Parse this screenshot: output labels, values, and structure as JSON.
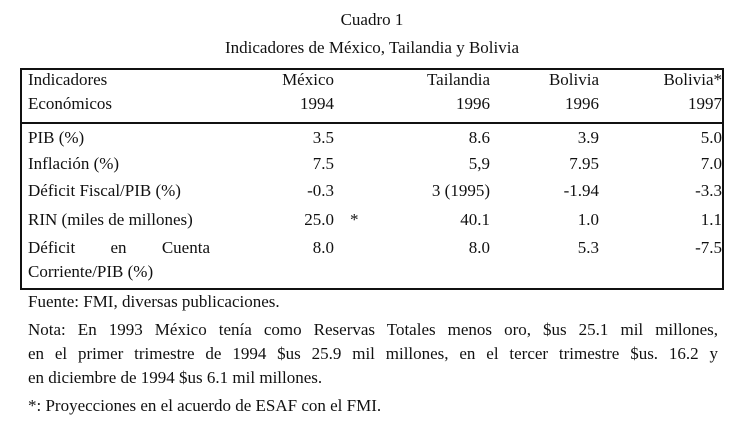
{
  "header": {
    "title": "Cuadro 1",
    "subtitle": "Indicadores de México, Tailandia y Bolivia"
  },
  "table": {
    "columns": [
      [
        "Indicadores",
        "Económicos"
      ],
      [
        "México",
        "1994"
      ],
      [
        "Tailandia",
        "1996"
      ],
      [
        "Bolivia",
        "1996"
      ],
      [
        "Bolivia*",
        "1997"
      ]
    ],
    "rows": [
      {
        "label": [
          "PIB (%)"
        ],
        "values": [
          "3.5",
          "8.6",
          "3.9",
          "5.0"
        ]
      },
      {
        "label": [
          "Inflación (%)"
        ],
        "values": [
          "7.5",
          "5,9",
          "7.95",
          "7.0"
        ]
      },
      {
        "label": [
          "Déficit Fiscal/PIB (%)"
        ],
        "values": [
          "-0.3",
          "3 (1995)",
          "-1.94",
          "-3.3"
        ]
      },
      {
        "label": [
          "RIN (miles de millones)"
        ],
        "values": [
          "25.0",
          "40.1",
          "1.0",
          "1.1"
        ],
        "marker": "*"
      },
      {
        "label": [
          "Déficit en Cuenta",
          "Corriente/PIB (%)"
        ],
        "values": [
          "8.0",
          "8.0",
          "5.3",
          "-7.5"
        ]
      }
    ]
  },
  "notes": {
    "source": "Fuente: FMI, diversas publicaciones.",
    "note": [
      "Nota: En 1993 México tenía como Reservas Totales menos oro, $us 25.1 mil millones,",
      "en el primer trimestre de 1994 $us 25.9 mil millones, en el tercer trimestre $us. 16.2 y",
      "en diciembre de 1994 $us 6.1 mil millones."
    ],
    "asterisk": "*: Proyecciones en el acuerdo de ESAF con el FMI."
  }
}
